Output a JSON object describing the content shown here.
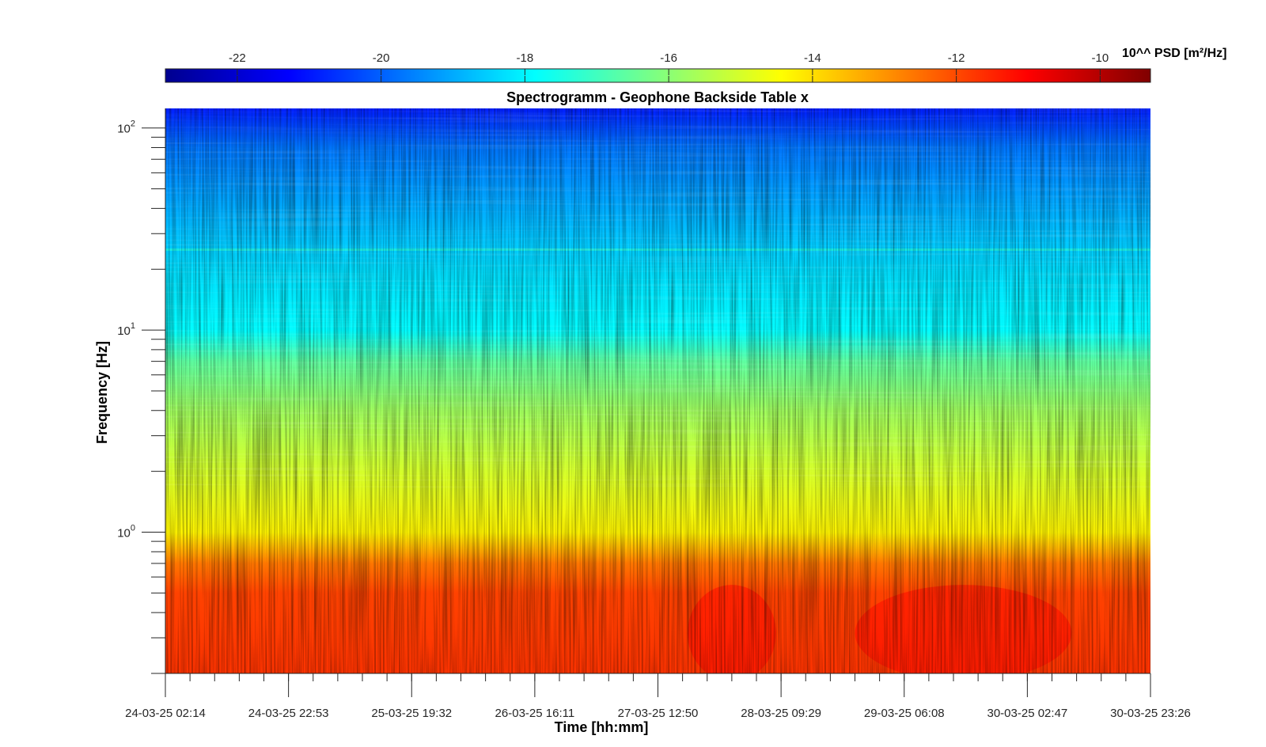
{
  "chart_data": {
    "type": "heatmap",
    "title": "Spectrogramm - Geophone Backside Table x",
    "xlabel": "Time [hh:mm]",
    "ylabel": "Frequency [Hz]",
    "x_tick_labels": [
      "24-03-25 02:14",
      "24-03-25 22:53",
      "25-03-25 19:32",
      "26-03-25 16:11",
      "27-03-25 12:50",
      "28-03-25 09:29",
      "29-03-25 06:08",
      "30-03-25 02:47",
      "30-03-25 23:26"
    ],
    "y_scale": "log",
    "ylim": [
      0.2,
      125
    ],
    "y_ticks": [
      {
        "value": 100,
        "base": "10",
        "exp": "2"
      },
      {
        "value": 10,
        "base": "10",
        "exp": "1"
      },
      {
        "value": 1,
        "base": "10",
        "exp": "0"
      }
    ],
    "colorbar": {
      "label": "10^^ PSD [m²/Hz]",
      "range": [
        -23,
        -9.3
      ],
      "tick_values": [
        -22,
        -20,
        -18,
        -16,
        -14,
        -12,
        -10
      ],
      "tick_labels": [
        "-22",
        "-20",
        "-18",
        "-16",
        "-14",
        "-12",
        "-10"
      ],
      "colormap": "jet",
      "location": "top"
    },
    "psd_profile_log10": [
      {
        "f": 0.2,
        "psd": -11.7
      },
      {
        "f": 0.5,
        "psd": -11.9
      },
      {
        "f": 0.7,
        "psd": -12.6
      },
      {
        "f": 1.0,
        "psd": -14.3
      },
      {
        "f": 2.0,
        "psd": -15.0
      },
      {
        "f": 4.0,
        "psd": -15.7
      },
      {
        "f": 7.0,
        "psd": -16.6
      },
      {
        "f": 10.0,
        "psd": -17.9
      },
      {
        "f": 20.0,
        "psd": -18.3
      },
      {
        "f": 30.0,
        "psd": -18.7
      },
      {
        "f": 50.0,
        "psd": -19.2
      },
      {
        "f": 80.0,
        "psd": -19.7
      },
      {
        "f": 125.0,
        "psd": -20.9
      }
    ],
    "notable_features": [
      {
        "description": "Stronger low-frequency band (red) around 28-03 and 29-03 to 30-03",
        "f_range": [
          0.2,
          0.6
        ],
        "psd": -11.0
      },
      {
        "description": "Narrow lines near 25 Hz",
        "f": 25,
        "psd": -17.3
      }
    ],
    "grid": false
  }
}
